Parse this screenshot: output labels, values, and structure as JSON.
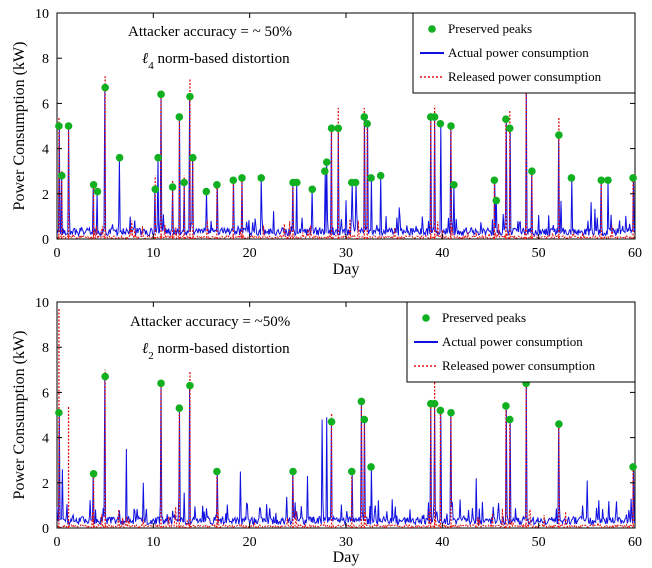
{
  "chart_data": [
    {
      "type": "line",
      "annotation_line1": "Attacker accuracy = ~ 50%",
      "annotation_line2": "ℓ4 norm-based distortion",
      "xlabel": "Day",
      "ylabel": "Power Consumption (kW)",
      "xlim": [
        0,
        60
      ],
      "ylim": [
        0,
        10
      ],
      "xticks": [
        0,
        10,
        20,
        30,
        40,
        50,
        60
      ],
      "yticks": [
        0,
        2,
        4,
        6,
        8,
        10
      ],
      "grid": false,
      "legend_position": "top-right",
      "legend": [
        "Preserved peaks",
        "Actual power consumption",
        "Released power consumption"
      ],
      "colors": {
        "actual": "#1010e0",
        "released": "#e01010",
        "peaks": "#10b020"
      },
      "preserved_peaks": [
        [
          0.2,
          5.0
        ],
        [
          0.5,
          2.8
        ],
        [
          1.2,
          5.0
        ],
        [
          3.8,
          2.4
        ],
        [
          4.2,
          2.1
        ],
        [
          5.0,
          6.7
        ],
        [
          6.5,
          3.6
        ],
        [
          10.2,
          2.2
        ],
        [
          10.5,
          3.6
        ],
        [
          10.8,
          6.4
        ],
        [
          12.0,
          2.3
        ],
        [
          12.7,
          5.4
        ],
        [
          13.2,
          2.5
        ],
        [
          13.8,
          6.3
        ],
        [
          14.1,
          3.6
        ],
        [
          15.5,
          2.1
        ],
        [
          16.6,
          2.4
        ],
        [
          18.3,
          2.6
        ],
        [
          19.2,
          2.7
        ],
        [
          21.2,
          2.7
        ],
        [
          24.5,
          2.5
        ],
        [
          24.9,
          2.5
        ],
        [
          26.5,
          2.2
        ],
        [
          27.8,
          3.0
        ],
        [
          28.0,
          3.4
        ],
        [
          28.5,
          4.9
        ],
        [
          29.2,
          4.9
        ],
        [
          30.6,
          2.5
        ],
        [
          31.0,
          2.5
        ],
        [
          31.9,
          5.4
        ],
        [
          32.2,
          5.1
        ],
        [
          32.6,
          2.7
        ],
        [
          33.6,
          2.8
        ],
        [
          38.8,
          5.4
        ],
        [
          39.2,
          5.4
        ],
        [
          39.8,
          5.1
        ],
        [
          40.9,
          5.0
        ],
        [
          41.2,
          2.4
        ],
        [
          45.4,
          2.6
        ],
        [
          45.6,
          1.7
        ],
        [
          46.6,
          5.3
        ],
        [
          47.0,
          4.9
        ],
        [
          48.7,
          6.6
        ],
        [
          49.3,
          3.0
        ],
        [
          52.1,
          4.6
        ],
        [
          53.4,
          2.7
        ],
        [
          56.5,
          2.6
        ],
        [
          57.2,
          2.6
        ],
        [
          59.8,
          2.7
        ]
      ],
      "released_spikes": [
        [
          0.2,
          5.4
        ],
        [
          0.5,
          3.0
        ],
        [
          1.2,
          5.0
        ],
        [
          3.8,
          2.6
        ],
        [
          5.0,
          7.2
        ],
        [
          10.2,
          2.8
        ],
        [
          10.8,
          6.5
        ],
        [
          12.0,
          2.6
        ],
        [
          12.7,
          5.5
        ],
        [
          13.2,
          2.8
        ],
        [
          13.8,
          7.1
        ],
        [
          14.1,
          3.6
        ],
        [
          16.6,
          2.4
        ],
        [
          18.3,
          2.6
        ],
        [
          19.2,
          2.7
        ],
        [
          24.5,
          2.5
        ],
        [
          28.5,
          5.0
        ],
        [
          29.2,
          5.8
        ],
        [
          31.9,
          5.8
        ],
        [
          32.2,
          5.2
        ],
        [
          38.8,
          5.5
        ],
        [
          39.2,
          5.9
        ],
        [
          40.9,
          5.1
        ],
        [
          45.4,
          2.6
        ],
        [
          46.6,
          5.4
        ],
        [
          47.0,
          5.7
        ],
        [
          48.7,
          6.7
        ],
        [
          49.3,
          3.0
        ],
        [
          52.1,
          5.4
        ],
        [
          56.5,
          2.6
        ],
        [
          59.8,
          2.7
        ]
      ],
      "actual_spikes": [
        [
          0.2,
          5.0
        ],
        [
          0.5,
          2.8
        ],
        [
          1.2,
          4.9
        ],
        [
          3.8,
          2.4
        ],
        [
          4.2,
          2.1
        ],
        [
          5.0,
          6.7
        ],
        [
          6.5,
          3.6
        ],
        [
          10.2,
          2.2
        ],
        [
          10.5,
          3.6
        ],
        [
          10.8,
          6.4
        ],
        [
          12.0,
          2.3
        ],
        [
          12.7,
          5.4
        ],
        [
          13.2,
          2.5
        ],
        [
          13.8,
          6.3
        ],
        [
          14.1,
          3.6
        ],
        [
          15.5,
          2.1
        ],
        [
          16.6,
          2.4
        ],
        [
          18.3,
          2.6
        ],
        [
          19.2,
          2.7
        ],
        [
          21.2,
          2.7
        ],
        [
          24.5,
          2.5
        ],
        [
          24.9,
          2.5
        ],
        [
          26.5,
          2.2
        ],
        [
          27.8,
          3.0
        ],
        [
          28.0,
          3.4
        ],
        [
          28.5,
          4.9
        ],
        [
          29.2,
          4.9
        ],
        [
          30.6,
          2.5
        ],
        [
          31.0,
          2.5
        ],
        [
          31.9,
          5.4
        ],
        [
          32.2,
          5.1
        ],
        [
          32.6,
          2.7
        ],
        [
          33.6,
          2.8
        ],
        [
          38.8,
          5.4
        ],
        [
          39.2,
          5.4
        ],
        [
          39.8,
          5.1
        ],
        [
          40.9,
          5.0
        ],
        [
          41.2,
          2.4
        ],
        [
          45.4,
          2.6
        ],
        [
          45.6,
          1.7
        ],
        [
          46.6,
          5.3
        ],
        [
          47.0,
          4.9
        ],
        [
          48.7,
          6.6
        ],
        [
          49.3,
          3.0
        ],
        [
          52.1,
          4.6
        ],
        [
          53.4,
          2.7
        ],
        [
          56.5,
          2.6
        ],
        [
          57.2,
          2.6
        ],
        [
          59.8,
          2.7
        ]
      ]
    },
    {
      "type": "line",
      "annotation_line1": "Attacker accuracy = ~50%",
      "annotation_line2": "ℓ2 norm-based distortion",
      "xlabel": "Day",
      "ylabel": "Power Consumption (kW)",
      "xlim": [
        0,
        60
      ],
      "ylim": [
        0,
        10
      ],
      "xticks": [
        0,
        10,
        20,
        30,
        40,
        50,
        60
      ],
      "yticks": [
        0,
        2,
        4,
        6,
        8,
        10
      ],
      "grid": false,
      "legend_position": "top-right",
      "legend": [
        "Preserved peaks",
        "Actual power consumption",
        "Released power consumption"
      ],
      "colors": {
        "actual": "#1010e0",
        "released": "#e01010",
        "peaks": "#10b020"
      },
      "preserved_peaks": [
        [
          0.2,
          5.1
        ],
        [
          3.8,
          2.4
        ],
        [
          5.0,
          6.7
        ],
        [
          10.8,
          6.4
        ],
        [
          12.7,
          5.3
        ],
        [
          13.8,
          6.3
        ],
        [
          16.6,
          2.5
        ],
        [
          24.5,
          2.5
        ],
        [
          28.5,
          4.7
        ],
        [
          30.6,
          2.5
        ],
        [
          31.6,
          5.6
        ],
        [
          31.9,
          4.8
        ],
        [
          32.6,
          2.7
        ],
        [
          38.8,
          5.5
        ],
        [
          39.2,
          5.5
        ],
        [
          39.8,
          5.2
        ],
        [
          40.9,
          5.1
        ],
        [
          46.6,
          5.4
        ],
        [
          47.0,
          4.8
        ],
        [
          48.7,
          6.4
        ],
        [
          52.1,
          4.6
        ],
        [
          59.8,
          2.7
        ]
      ],
      "released_spikes": [
        [
          0.2,
          9.7
        ],
        [
          1.2,
          5.4
        ],
        [
          3.8,
          2.4
        ],
        [
          5.0,
          7.0
        ],
        [
          10.8,
          6.4
        ],
        [
          12.7,
          5.3
        ],
        [
          13.8,
          6.9
        ],
        [
          16.6,
          2.5
        ],
        [
          24.5,
          2.5
        ],
        [
          28.5,
          5.1
        ],
        [
          30.6,
          2.6
        ],
        [
          31.6,
          5.6
        ],
        [
          31.9,
          4.9
        ],
        [
          38.8,
          5.5
        ],
        [
          39.2,
          6.5
        ],
        [
          39.8,
          5.2
        ],
        [
          40.9,
          5.1
        ],
        [
          46.6,
          5.4
        ],
        [
          47.0,
          4.8
        ],
        [
          48.7,
          6.6
        ],
        [
          52.1,
          4.6
        ],
        [
          59.8,
          2.7
        ]
      ],
      "actual_spikes": [
        [
          0.2,
          5.1
        ],
        [
          0.6,
          2.6
        ],
        [
          3.8,
          2.4
        ],
        [
          5.0,
          6.7
        ],
        [
          7.2,
          3.5
        ],
        [
          9.0,
          2.0
        ],
        [
          10.8,
          6.4
        ],
        [
          12.7,
          5.3
        ],
        [
          13.8,
          6.3
        ],
        [
          16.6,
          2.5
        ],
        [
          19.0,
          2.5
        ],
        [
          24.5,
          2.5
        ],
        [
          26.0,
          2.3
        ],
        [
          27.5,
          4.8
        ],
        [
          28.0,
          4.9
        ],
        [
          28.5,
          4.7
        ],
        [
          30.6,
          2.5
        ],
        [
          31.6,
          5.6
        ],
        [
          31.9,
          4.8
        ],
        [
          32.6,
          2.7
        ],
        [
          38.8,
          5.5
        ],
        [
          39.2,
          5.5
        ],
        [
          39.8,
          5.2
        ],
        [
          40.9,
          5.1
        ],
        [
          43.5,
          2.2
        ],
        [
          46.6,
          5.4
        ],
        [
          47.0,
          4.8
        ],
        [
          48.7,
          6.4
        ],
        [
          52.1,
          4.6
        ],
        [
          55.0,
          2.1
        ],
        [
          59.8,
          2.7
        ]
      ]
    }
  ]
}
